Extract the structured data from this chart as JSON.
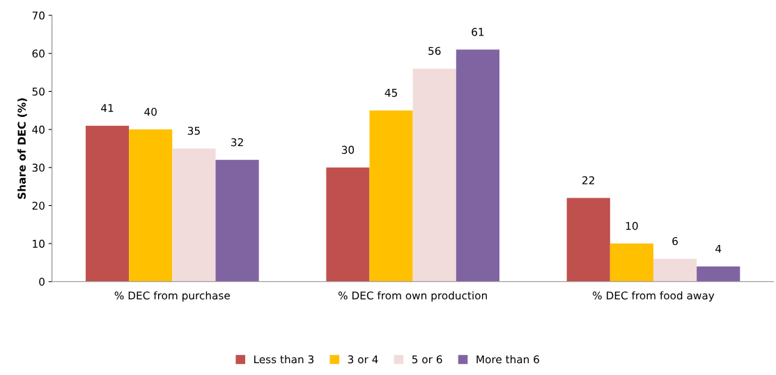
{
  "chart_data": {
    "type": "bar",
    "ylabel": "Share of DEC (%)",
    "categories": [
      "% DEC from purchase",
      "% DEC from own production",
      "% DEC from food away"
    ],
    "series": [
      {
        "name": "Less than 3",
        "color": "#c0504d",
        "values": [
          41,
          30,
          22
        ]
      },
      {
        "name": "3 or 4",
        "color": "#ffc000",
        "values": [
          40,
          45,
          10
        ]
      },
      {
        "name": "5 or 6",
        "color": "#f2dcdb",
        "values": [
          35,
          56,
          6
        ]
      },
      {
        "name": "More than 6",
        "color": "#8064a2",
        "values": [
          32,
          61,
          4
        ]
      }
    ],
    "ylim": [
      0,
      70
    ],
    "yticks": [
      0,
      10,
      20,
      30,
      40,
      50,
      60,
      70
    ],
    "data_labels": true,
    "legend": "bottom",
    "grid": false
  }
}
